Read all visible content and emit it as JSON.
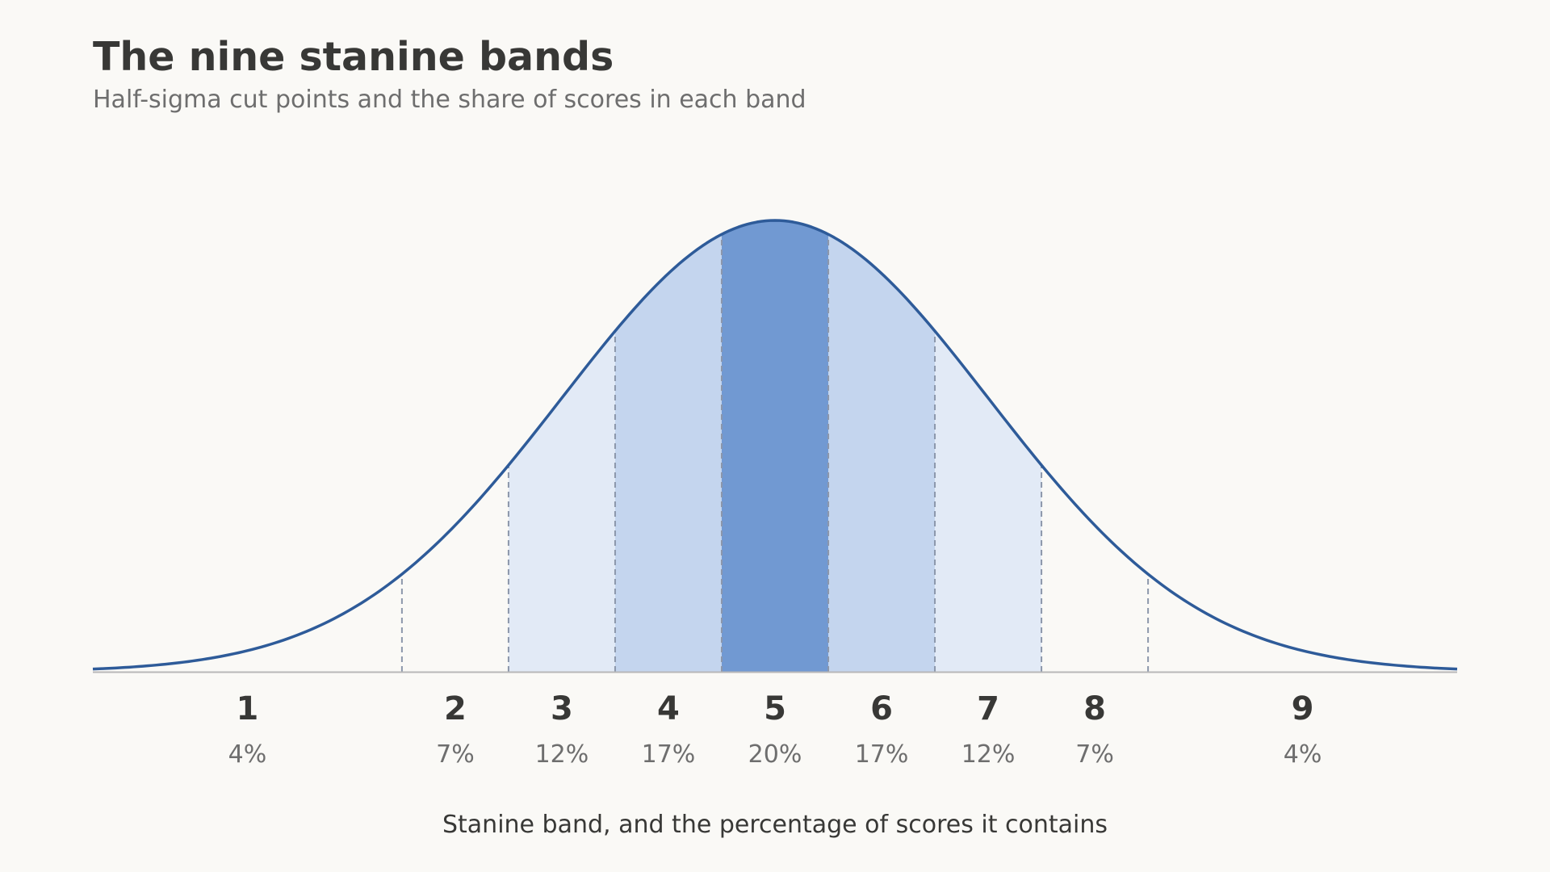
{
  "title": "The nine stanine bands",
  "subtitle": "Half-sigma cut points and the share of scores in each band",
  "colors": {
    "background": "#faf9f6",
    "curve": "#2e5b99",
    "cut_line": "#8c97ab",
    "baseline": "#b8b8b8",
    "fill_light": "#e2eaf6",
    "fill_medium": "#c4d5ee",
    "fill_dark": "#7199d2",
    "text_dark": "#383836",
    "text_muted": "#6e6e6e"
  },
  "chart_data": {
    "type": "area",
    "title": "The nine stanine bands",
    "subtitle": "Half-sigma cut points and the share of scores in each band",
    "xlabel": "Stanine band, and the percentage of scores it contains",
    "ylabel": "",
    "xlim": [
      -3.2,
      3.2
    ],
    "distribution": "standard normal",
    "cut_points": [
      -1.75,
      -1.25,
      -0.75,
      -0.25,
      0.25,
      0.75,
      1.25,
      1.75
    ],
    "bands": [
      {
        "stanine": "1",
        "percent": "4%",
        "from": -3.2,
        "to": -1.75,
        "shade": "none"
      },
      {
        "stanine": "2",
        "percent": "7%",
        "from": -1.75,
        "to": -1.25,
        "shade": "none"
      },
      {
        "stanine": "3",
        "percent": "12%",
        "from": -1.25,
        "to": -0.75,
        "shade": "light"
      },
      {
        "stanine": "4",
        "percent": "17%",
        "from": -0.75,
        "to": -0.25,
        "shade": "medium"
      },
      {
        "stanine": "5",
        "percent": "20%",
        "from": -0.25,
        "to": 0.25,
        "shade": "dark"
      },
      {
        "stanine": "6",
        "percent": "17%",
        "from": 0.25,
        "to": 0.75,
        "shade": "medium"
      },
      {
        "stanine": "7",
        "percent": "12%",
        "from": 0.75,
        "to": 1.25,
        "shade": "light"
      },
      {
        "stanine": "8",
        "percent": "7%",
        "from": 1.25,
        "to": 1.75,
        "shade": "none"
      },
      {
        "stanine": "9",
        "percent": "4%",
        "from": 1.75,
        "to": 3.2,
        "shade": "none"
      }
    ],
    "grid": false,
    "legend": "none"
  }
}
